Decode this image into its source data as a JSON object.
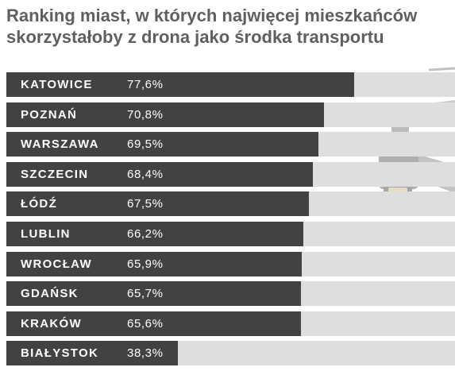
{
  "chart_data": {
    "type": "bar",
    "orientation": "horizontal",
    "title": "Ranking miast, w których najwięcej mieszkańców skorzystałoby z drona jako środka transportu",
    "categories": [
      "KATOWICE",
      "POZNAŃ",
      "WARSZAWA",
      "SZCZECIN",
      "ŁÓDŹ",
      "LUBLIN",
      "WROCŁAW",
      "GDAŃSK",
      "KRAKÓW",
      "BIAŁYSTOK"
    ],
    "values": [
      77.6,
      70.8,
      69.5,
      68.4,
      67.5,
      66.2,
      65.9,
      65.7,
      65.6,
      38.3
    ],
    "value_labels": [
      "77,6%",
      "70,8%",
      "69,5%",
      "68,4%",
      "67,5%",
      "66,2%",
      "65,9%",
      "65,7%",
      "65,6%",
      "38,3%"
    ],
    "xlim": [
      0,
      100
    ],
    "grid": false,
    "legend": "none",
    "bar_color": "#424242",
    "track_color": "#dedede"
  }
}
